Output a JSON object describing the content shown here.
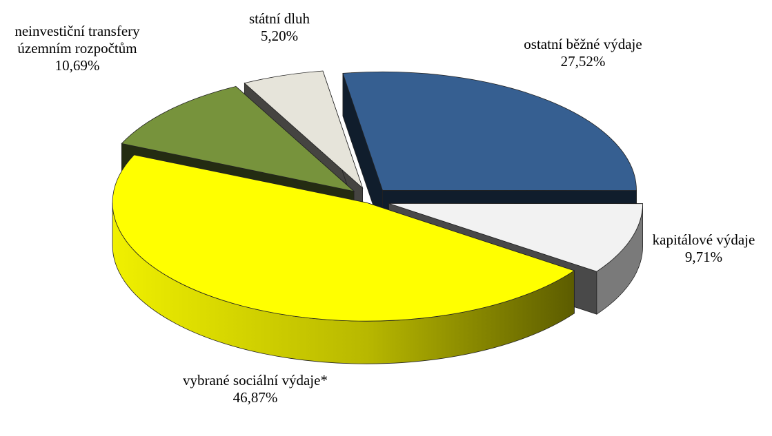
{
  "chart_data": {
    "type": "pie3d",
    "categories": [
      "ostatní běžné výdaje",
      "kapitálové výdaje",
      "vybrané sociální výdaje*",
      "neinvestiční transfery územním rozpočtům",
      "státní dluh"
    ],
    "values": [
      27.52,
      9.71,
      46.87,
      10.69,
      5.2
    ],
    "value_labels": [
      "27,52%",
      "9,71%",
      "46,87%",
      "10,69%",
      "5,20%"
    ],
    "colors": [
      "#365F91",
      "#F2F2F2",
      "#FFFF00",
      "#77933C",
      "#E6E4DA"
    ]
  }
}
